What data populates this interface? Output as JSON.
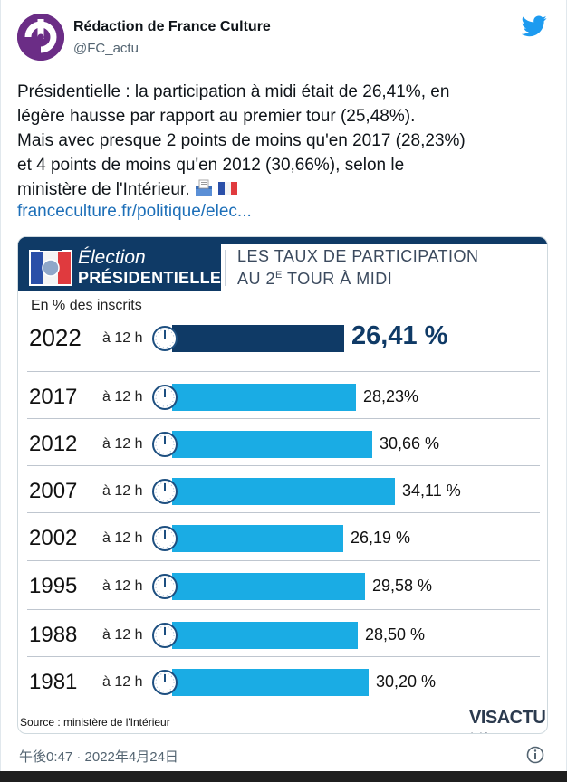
{
  "author": {
    "name": "Rédaction de France Culture",
    "handle": "@FC_actu"
  },
  "tweet": {
    "lines": [
      "Présidentielle : la participation à midi était de 26,41%, en",
      "légère hausse par rapport au premier tour (25,48%).",
      "Mais avec presque 2 points de moins qu'en 2017 (28,23%)",
      "et 4 points de moins qu'en 2012 (30,66%), selon le",
      "ministère de l'Intérieur."
    ],
    "emojis": [
      "ballot-box-icon",
      "france-flag-icon"
    ],
    "link": "franceculture.fr/politique/elec..."
  },
  "card": {
    "brand_line1": "Élection",
    "brand_line2": "PRÉSIDENTIELLE",
    "title_line1": "LES TAUX DE PARTICIPATION",
    "title_line2_pre": "AU 2",
    "title_line2_sup": "E",
    "title_line2_post": " TOUR À MIDI",
    "subtitle": "En % des inscrits",
    "source": "Source : ministère de l'Intérieur",
    "logo": "VISACTU"
  },
  "chart_data": {
    "type": "bar",
    "orientation": "horizontal",
    "unit_label": "à 12 h",
    "categories": [
      "2022",
      "2017",
      "2012",
      "2007",
      "2002",
      "1995",
      "1988",
      "1981"
    ],
    "values": [
      26.41,
      28.23,
      30.66,
      34.11,
      26.19,
      29.58,
      28.5,
      30.2
    ],
    "labels": [
      "26,41 %",
      "28,23%",
      "30,66 %",
      "34,11 %",
      "26,19 %",
      "29,58 %",
      "28,50 %",
      "30,20 %"
    ],
    "colors": {
      "highlight": "#0f3a66",
      "default": "#1aace4"
    }
  },
  "timestamp": "午後0:47 · 2022年4月24日",
  "colors": {
    "link": "#1d6fb8",
    "twitter": "#1d9bf0",
    "avatar": "#6b2d86"
  }
}
